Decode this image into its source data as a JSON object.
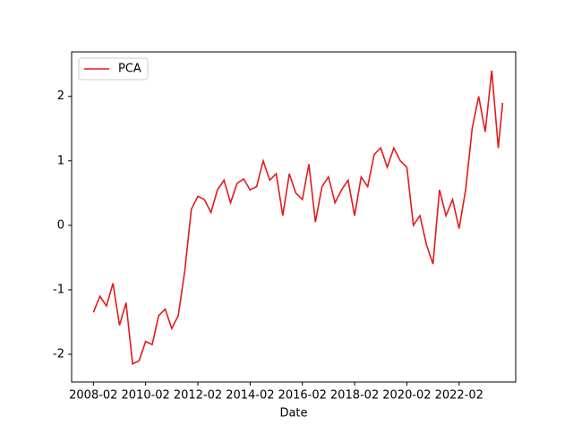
{
  "chart_data": {
    "type": "line",
    "xlabel": "Date",
    "x": [
      "2008-02",
      "2008-05",
      "2008-08",
      "2008-11",
      "2009-02",
      "2009-05",
      "2009-08",
      "2009-11",
      "2010-02",
      "2010-05",
      "2010-08",
      "2010-11",
      "2011-02",
      "2011-05",
      "2011-08",
      "2011-11",
      "2012-02",
      "2012-05",
      "2012-08",
      "2012-11",
      "2013-02",
      "2013-05",
      "2013-08",
      "2013-11",
      "2014-02",
      "2014-05",
      "2014-08",
      "2014-11",
      "2015-02",
      "2015-05",
      "2015-08",
      "2015-11",
      "2016-02",
      "2016-05",
      "2016-08",
      "2016-11",
      "2017-02",
      "2017-05",
      "2017-08",
      "2017-11",
      "2018-02",
      "2018-05",
      "2018-08",
      "2018-11",
      "2019-02",
      "2019-05",
      "2019-08",
      "2019-11",
      "2020-02",
      "2020-05",
      "2020-08",
      "2020-11",
      "2021-02",
      "2021-05",
      "2021-08",
      "2021-11",
      "2022-02",
      "2022-05",
      "2022-08",
      "2022-11",
      "2023-02",
      "2023-05",
      "2023-08",
      "2023-10"
    ],
    "series": [
      {
        "name": "PCA",
        "color": "#e41a1c",
        "values": [
          -1.35,
          -1.1,
          -1.25,
          -0.9,
          -1.55,
          -1.2,
          -2.15,
          -2.1,
          -1.8,
          -1.85,
          -1.4,
          -1.3,
          -1.6,
          -1.4,
          -0.7,
          0.25,
          0.45,
          0.4,
          0.2,
          0.55,
          0.7,
          0.35,
          0.65,
          0.72,
          0.55,
          0.6,
          1.0,
          0.7,
          0.8,
          0.15,
          0.8,
          0.5,
          0.4,
          0.95,
          0.05,
          0.6,
          0.75,
          0.35,
          0.55,
          0.7,
          0.15,
          0.75,
          0.6,
          1.1,
          1.2,
          0.9,
          1.2,
          1.0,
          0.9,
          0.0,
          0.15,
          -0.3,
          -0.6,
          0.55,
          0.15,
          0.4,
          -0.05,
          0.55,
          1.5,
          2.0,
          1.45,
          2.4,
          1.2,
          1.9
        ]
      }
    ],
    "xlim": [
      "2007-04",
      "2024-04"
    ],
    "xticks": [
      "2008-02",
      "2010-02",
      "2012-02",
      "2014-02",
      "2016-02",
      "2018-02",
      "2020-02",
      "2022-02"
    ],
    "ylim": [
      -2.43,
      2.69
    ],
    "yticks": [
      -2,
      -1,
      0,
      1,
      2
    ],
    "legend": "upper left"
  }
}
